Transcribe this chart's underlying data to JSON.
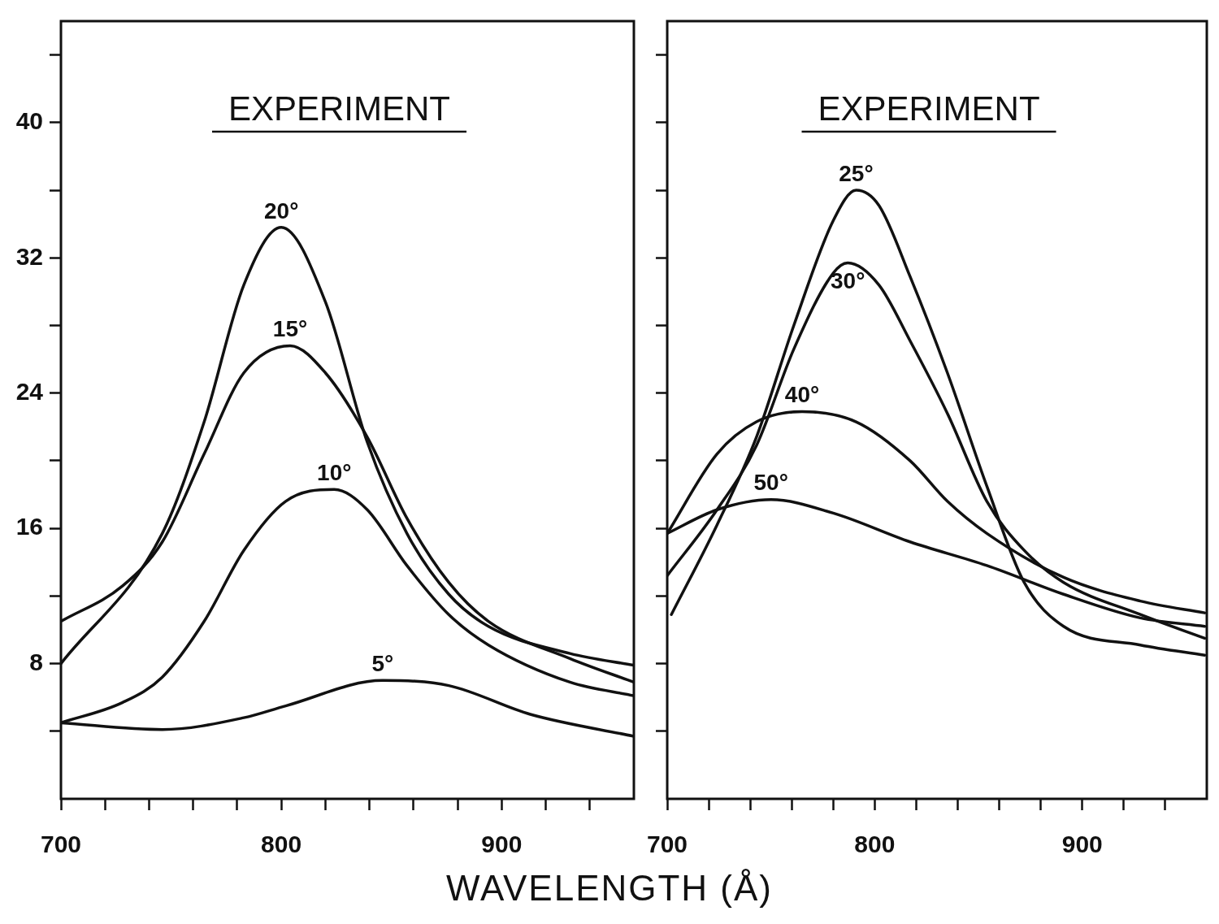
{
  "chart_data": [
    {
      "type": "line",
      "title": "EXPERIMENT",
      "xlabel": "WAVELENGTH (Å)",
      "xlim": [
        700,
        960
      ],
      "ylim": [
        0,
        46
      ],
      "xticks": [
        700,
        {
          "value": 720,
          "label": null
        },
        {
          "value": 740,
          "label": null
        },
        {
          "value": 760,
          "label": null
        },
        {
          "value": 780,
          "label": null
        },
        800,
        {
          "value": 820,
          "label": null
        },
        {
          "value": 840,
          "label": null
        },
        {
          "value": 860,
          "label": null
        },
        {
          "value": 880,
          "label": null
        },
        900,
        {
          "value": 920,
          "label": null
        },
        {
          "value": 940,
          "label": null
        }
      ],
      "yticks": [
        {
          "value": 4,
          "label": null
        },
        8,
        {
          "value": 12,
          "label": null
        },
        16,
        {
          "value": 20,
          "label": null
        },
        24,
        {
          "value": 28,
          "label": null
        },
        32,
        {
          "value": 36,
          "label": null
        },
        40,
        {
          "value": 44,
          "label": null
        }
      ],
      "legend": false,
      "marker": "none",
      "line_style": "solid",
      "series": [
        {
          "name": "20°",
          "color": "#111111",
          "x": [
            700,
            746,
            765,
            783,
            800,
            820,
            839,
            857,
            876,
            894,
            931,
            960
          ],
          "values": [
            8.0,
            15.7,
            22.3,
            30.4,
            33.8,
            29.4,
            21.1,
            15.7,
            12.1,
            10.2,
            8.6,
            7.9
          ]
        },
        {
          "name": "15°",
          "color": "#111111",
          "x": [
            700,
            728,
            746,
            765,
            783,
            804,
            820,
            839,
            857,
            876,
            894,
            931,
            960
          ],
          "values": [
            10.5,
            12.6,
            15.2,
            20.4,
            25.2,
            26.8,
            25.2,
            21.4,
            16.6,
            12.8,
            10.5,
            8.3,
            6.9
          ]
        },
        {
          "name": "10°",
          "color": "#111111",
          "x": [
            700,
            728,
            746,
            765,
            783,
            802,
            824,
            839,
            857,
            876,
            894,
            931,
            960
          ],
          "values": [
            4.5,
            5.7,
            7.2,
            10.5,
            14.7,
            17.6,
            18.3,
            17.1,
            13.8,
            10.9,
            9.1,
            6.9,
            6.1
          ]
        },
        {
          "name": "5°",
          "color": "#111111",
          "x": [
            700,
            746,
            783,
            802,
            846,
            876,
            913,
            960
          ],
          "values": [
            4.5,
            4.1,
            4.8,
            5.5,
            7.0,
            6.7,
            5.0,
            3.7
          ]
        }
      ]
    },
    {
      "type": "line",
      "title": "EXPERIMENT",
      "xlim": [
        700,
        960
      ],
      "ylim": [
        0,
        46
      ],
      "tick_labels": "x",
      "xticks": [
        700,
        {
          "value": 720,
          "label": null
        },
        {
          "value": 740,
          "label": null
        },
        {
          "value": 760,
          "label": null
        },
        {
          "value": 780,
          "label": null
        },
        800,
        {
          "value": 820,
          "label": null
        },
        {
          "value": 840,
          "label": null
        },
        {
          "value": 860,
          "label": null
        },
        {
          "value": 880,
          "label": null
        },
        900,
        {
          "value": 920,
          "label": null
        },
        {
          "value": 940,
          "label": null
        }
      ],
      "yticks": [
        {
          "value": 4,
          "label": null
        },
        {
          "value": 8,
          "label": null
        },
        {
          "value": 12,
          "label": null
        },
        {
          "value": 16,
          "label": null
        },
        {
          "value": 20,
          "label": null
        },
        {
          "value": 24,
          "label": null
        },
        {
          "value": 28,
          "label": null
        },
        {
          "value": 32,
          "label": null
        },
        {
          "value": 36,
          "label": null
        },
        {
          "value": 40,
          "label": null
        },
        {
          "value": 44,
          "label": null
        }
      ],
      "legend": false,
      "marker": "none",
      "line_style": "solid",
      "series": [
        {
          "name": "25°",
          "color": "#111111",
          "x": [
            702,
            724,
            743,
            761,
            780,
            791,
            802,
            817,
            835,
            854,
            872,
            891,
            928,
            959
          ],
          "values": [
            10.9,
            16.2,
            21.4,
            28.0,
            34.2,
            36.0,
            35.1,
            30.9,
            25.2,
            18.5,
            12.8,
            10.2,
            9.1,
            8.5
          ]
        },
        {
          "name": "30°",
          "color": "#111111",
          "x": [
            700,
            724,
            743,
            761,
            780,
            787,
            802,
            817,
            835,
            854,
            872,
            891,
            928,
            959
          ],
          "values": [
            13.2,
            17.1,
            20.9,
            26.6,
            31.1,
            31.7,
            30.4,
            27.1,
            22.8,
            17.6,
            14.7,
            12.8,
            10.9,
            9.5
          ]
        },
        {
          "name": "40°",
          "color": "#111111",
          "x": [
            700,
            724,
            743,
            765,
            791,
            817,
            835,
            854,
            891,
            928,
            959
          ],
          "values": [
            15.7,
            20.4,
            22.3,
            22.9,
            22.3,
            20.0,
            17.6,
            15.7,
            13.1,
            11.7,
            11.0
          ]
        },
        {
          "name": "50°",
          "color": "#111111",
          "x": [
            700,
            724,
            750,
            780,
            817,
            854,
            891,
            928,
            959
          ],
          "values": [
            15.7,
            17.1,
            17.7,
            16.9,
            15.2,
            13.8,
            12.1,
            10.7,
            10.2
          ]
        }
      ]
    }
  ]
}
